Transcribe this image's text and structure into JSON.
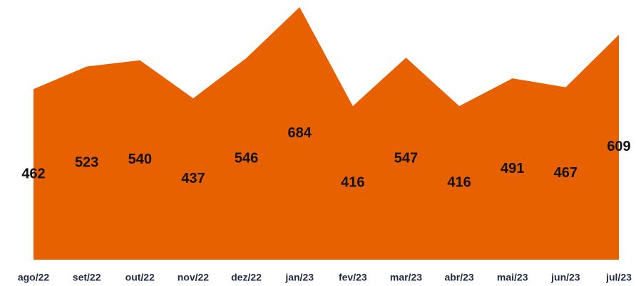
{
  "chart_data": {
    "type": "area",
    "categories": [
      "ago/22",
      "set/22",
      "out/22",
      "nov/22",
      "dez/22",
      "jan/23",
      "fev/23",
      "mar/23",
      "abr/23",
      "mai/23",
      "jun/23",
      "jul/23"
    ],
    "values": [
      462,
      523,
      540,
      437,
      546,
      684,
      416,
      547,
      416,
      491,
      467,
      609
    ],
    "color": "#e86100"
  }
}
